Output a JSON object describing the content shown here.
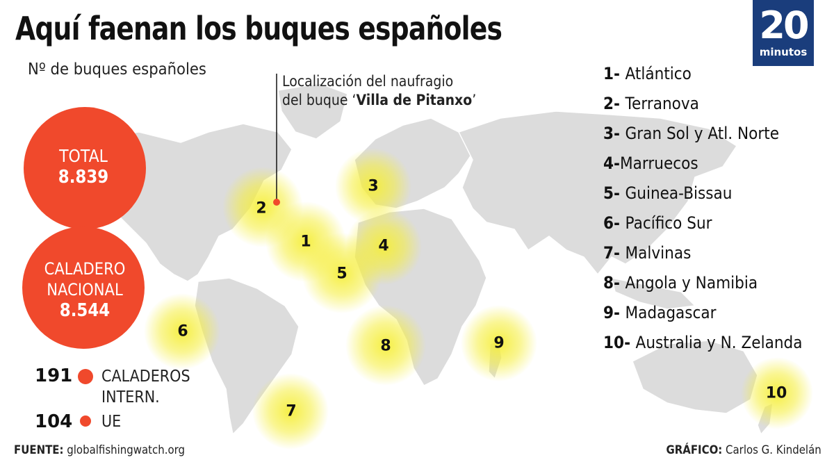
{
  "title": "Aquí faenan los buques españoles",
  "logo": {
    "number": "20",
    "word": "minutos"
  },
  "subtitle": "Nº de buques españoles",
  "annotation": {
    "line1": "Localización del naufragio",
    "line2_prefix": "del buque ‘",
    "ship": "Villa de Pitanxo",
    "line2_suffix": "’"
  },
  "totals": {
    "total": {
      "label": "TOTAL",
      "value": "8.839"
    },
    "nacional": {
      "label1": "CALADERO",
      "label2": "NACIONAL",
      "value": "8.544"
    },
    "internacional": {
      "value": "191",
      "label1": "CALADEROS",
      "label2": "INTERN."
    },
    "ue": {
      "value": "104",
      "label": "UE"
    }
  },
  "zones": [
    {
      "n": "1",
      "name": "Atlántico"
    },
    {
      "n": "2",
      "name": "Terranova"
    },
    {
      "n": "3",
      "name": "Gran Sol y Atl. Norte"
    },
    {
      "n": "4",
      "name": "Marruecos"
    },
    {
      "n": "5",
      "name": "Guinea-Bissau"
    },
    {
      "n": "6",
      "name": "Pacífico Sur"
    },
    {
      "n": "7",
      "name": "Malvinas"
    },
    {
      "n": "8",
      "name": "Angola y Namibia"
    },
    {
      "n": "9",
      "name": "Madagascar"
    },
    {
      "n": "10",
      "name": "Australia y N. Zelanda"
    }
  ],
  "legend_sep": [
    "- ",
    "- ",
    "- ",
    "-",
    "- ",
    "- ",
    "- ",
    "- ",
    "- ",
    "- "
  ],
  "footer": {
    "source_label": "FUENTE:",
    "source": "globalfishingwatch.org",
    "credit_label": "GRÁFICO:",
    "credit": "Carlos G. Kindelán"
  },
  "colors": {
    "circle": "#f0492c",
    "zone_glow": "#f5ee3a",
    "land": "#dcdcdc",
    "logo": "#1a3d7c"
  }
}
